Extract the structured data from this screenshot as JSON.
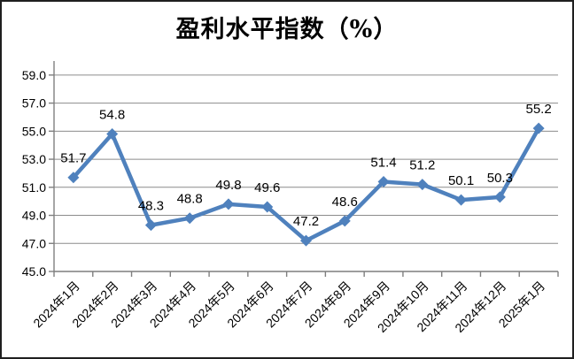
{
  "chart_data": {
    "type": "line",
    "title": "盈利水平指数（%）",
    "categories": [
      "2024年1月",
      "2024年2月",
      "2024年3月",
      "2024年4月",
      "2024年5月",
      "2024年6月",
      "2024年7月",
      "2024年8月",
      "2024年9月",
      "2024年10月",
      "2024年11月",
      "2024年12月",
      "2025年1月"
    ],
    "values": [
      51.7,
      54.8,
      48.3,
      48.8,
      49.8,
      49.6,
      47.2,
      48.6,
      51.4,
      51.2,
      50.1,
      50.3,
      55.2
    ],
    "data_labels": [
      "51.7",
      "54.8",
      "48.3",
      "48.8",
      "49.8",
      "49.6",
      "47.2",
      "48.6",
      "51.4",
      "51.2",
      "50.1",
      "50.3",
      "55.2"
    ],
    "xlabel": "",
    "ylabel": "",
    "ylim": [
      45.0,
      60.0
    ],
    "ytick_values": [
      45.0,
      47.0,
      49.0,
      51.0,
      53.0,
      55.0,
      57.0,
      59.0
    ],
    "ytick_labels": [
      "45.0",
      "47.0",
      "49.0",
      "51.0",
      "53.0",
      "55.0",
      "57.0",
      "59.0"
    ],
    "grid": "horizontal",
    "legend": "none",
    "marker": "diamond",
    "colors": {
      "series_line": "#4F81BD",
      "marker_fill": "#4F81BD",
      "gridline": "#8C8C8C",
      "axis_line": "#7F7F7F",
      "tick_text": "#000000",
      "data_label_text": "#000000",
      "title_text": "#000000"
    }
  }
}
